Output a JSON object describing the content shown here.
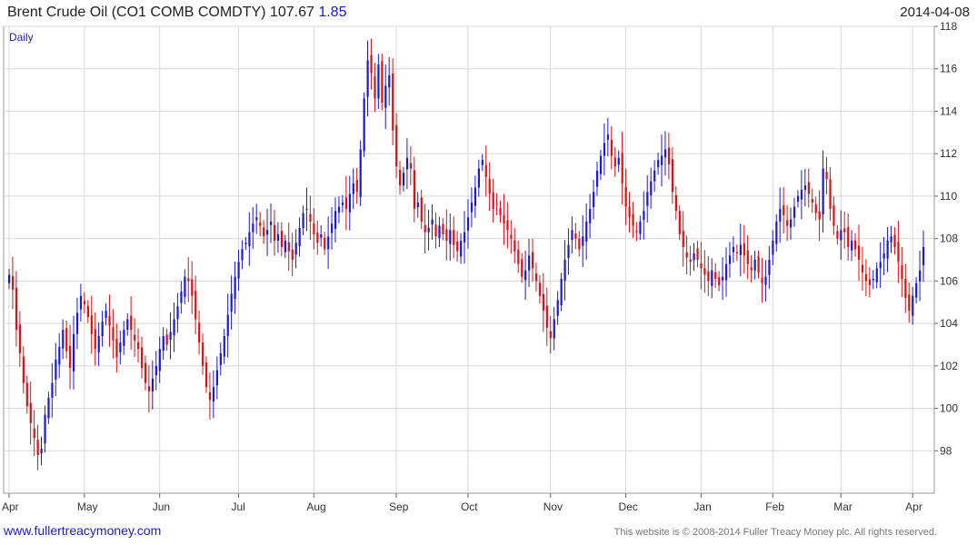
{
  "header": {
    "title": "Brent Crude Oil  (CO1 COMB COMDTY) 107.67",
    "change": "1.85",
    "date": "2014-04-08"
  },
  "footer": {
    "website": "www.fullertreacymoney.com",
    "copyright": "This website is © 2008-2014 Fuller Treacy Money plc. All rights reserved."
  },
  "colors": {
    "up": "#1a1ad6",
    "down": "#e01010",
    "grid": "#d8d8d8"
  },
  "chart_data": {
    "type": "ohlc",
    "frequency_label": "Daily",
    "y_axis": {
      "ticks": [
        98,
        100,
        102,
        104,
        106,
        108,
        110,
        112,
        114,
        116,
        118
      ],
      "range": [
        96,
        118
      ],
      "position": "right"
    },
    "x_axis": {
      "month_labels": [
        "Apr",
        "May",
        "Jun",
        "Jul",
        "Aug",
        "Sep",
        "Oct",
        "Nov",
        "Dec",
        "Jan",
        "Feb",
        "Mar",
        "Apr"
      ]
    },
    "grid": true,
    "closes": [
      106.3,
      105.6,
      103.7,
      102.6,
      101.2,
      100.1,
      99.3,
      98.6,
      97.8,
      98.1,
      99.7,
      100.5,
      101.2,
      102.3,
      102.9,
      103.7,
      102.7,
      101.9,
      103.5,
      104.5,
      105.3,
      104.9,
      104.3,
      103.5,
      102.8,
      103.4,
      104.1,
      104.6,
      103.9,
      103.2,
      102.4,
      103.1,
      103.7,
      104.2,
      103.7,
      103.2,
      102.8,
      101.9,
      101.2,
      100.8,
      101.4,
      102.0,
      102.8,
      103.4,
      103.0,
      103.6,
      104.2,
      104.8,
      105.5,
      106.2,
      106.0,
      105.3,
      104.2,
      103.1,
      102.0,
      101.0,
      100.4,
      101.0,
      101.8,
      102.6,
      103.4,
      104.4,
      105.4,
      106.2,
      106.9,
      107.5,
      107.8,
      108.3,
      108.7,
      109.0,
      108.6,
      108.1,
      108.4,
      108.8,
      107.9,
      108.2,
      107.6,
      107.9,
      107.4,
      107.0,
      107.8,
      108.5,
      109.2,
      109.4,
      108.8,
      108.2,
      107.8,
      108.2,
      107.5,
      108.1,
      108.7,
      109.3,
      109.5,
      109.7,
      109.4,
      110.1,
      110.6,
      110.2,
      112.2,
      114.6,
      116.4,
      115.8,
      114.6,
      116.2,
      114.4,
      115.2,
      115.7,
      113.1,
      111.4,
      110.5,
      111.1,
      111.8,
      111.3,
      109.4,
      109.7,
      108.8,
      108.3,
      108.5,
      108.9,
      108.1,
      108.6,
      108.2,
      107.9,
      108.4,
      107.7,
      107.4,
      107.9,
      108.3,
      109.0,
      109.7,
      110.4,
      111.3,
      111.7,
      110.9,
      110.1,
      109.4,
      109.6,
      109.1,
      108.7,
      108.4,
      108.0,
      107.4,
      106.8,
      106.2,
      106.5,
      107.2,
      106.6,
      106.0,
      105.3,
      104.6,
      103.8,
      103.3,
      104.2,
      105.1,
      106.1,
      107.0,
      107.7,
      108.4,
      108.0,
      107.5,
      108.1,
      108.8,
      109.4,
      110.2,
      111.2,
      111.9,
      112.5,
      112.9,
      111.9,
      111.4,
      111.8,
      110.6,
      109.5,
      109.0,
      108.6,
      108.3,
      108.8,
      109.3,
      110.2,
      110.7,
      111.2,
      111.7,
      111.9,
      112.2,
      111.5,
      110.2,
      109.3,
      108.2,
      107.6,
      107.1,
      106.9,
      107.3,
      107.0,
      106.6,
      106.3,
      106.0,
      106.5,
      106.1,
      105.8,
      106.2,
      106.8,
      107.2,
      107.6,
      107.3,
      107.7,
      107.2,
      106.8,
      106.5,
      107.0,
      106.4,
      105.9,
      106.2,
      107.0,
      107.9,
      108.8,
      109.4,
      109.1,
      108.6,
      108.9,
      109.5,
      110.0,
      110.3,
      110.5,
      110.1,
      109.7,
      109.2,
      108.9,
      111.3,
      110.8,
      109.4,
      108.6,
      108.0,
      108.4,
      108.3,
      107.6,
      107.9,
      107.5,
      107.0,
      106.4,
      106.0,
      105.8,
      106.1,
      106.6,
      106.9,
      107.3,
      107.9,
      108.1,
      107.6,
      106.9,
      106.1,
      105.2,
      104.6,
      105.3,
      105.9,
      106.5,
      107.6
    ]
  }
}
